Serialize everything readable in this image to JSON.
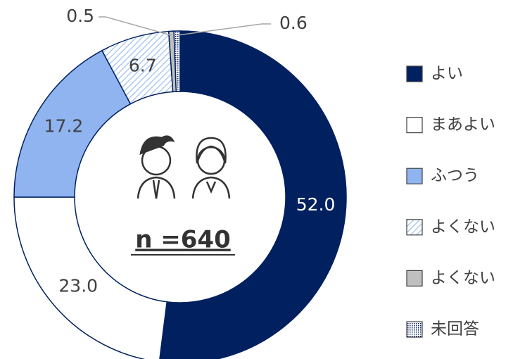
{
  "chart_data": {
    "type": "donut",
    "center_label": "n =640",
    "categories": [
      "よい",
      "まあよい",
      "ふつう",
      "よくない",
      "よくない",
      "未回答"
    ],
    "values": [
      52.0,
      23.0,
      17.2,
      6.7,
      0.5,
      0.6
    ],
    "value_labels": [
      "52.0",
      "23.0",
      "17.2",
      "6.7",
      "0.5",
      "0.6"
    ],
    "colors": [
      "#002060",
      "#ffffff",
      "#8fb4f0",
      "url(#hatch)",
      "#bfbfbf",
      "url(#dots)"
    ],
    "legend": "right"
  }
}
